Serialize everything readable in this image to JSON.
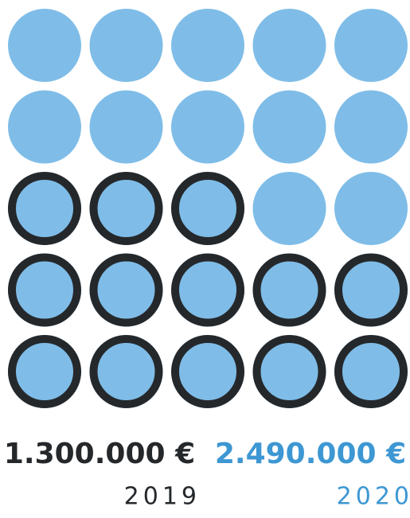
{
  "chart_data": {
    "type": "waffle",
    "categories": [
      "2019",
      "2020"
    ],
    "values": [
      1300000,
      2490000
    ],
    "value_labels": [
      "1.300.000 €",
      "2.490.000 €"
    ],
    "colors": [
      "#25282b",
      "#3d97d3"
    ],
    "color": "#7fbde8"
  }
}
